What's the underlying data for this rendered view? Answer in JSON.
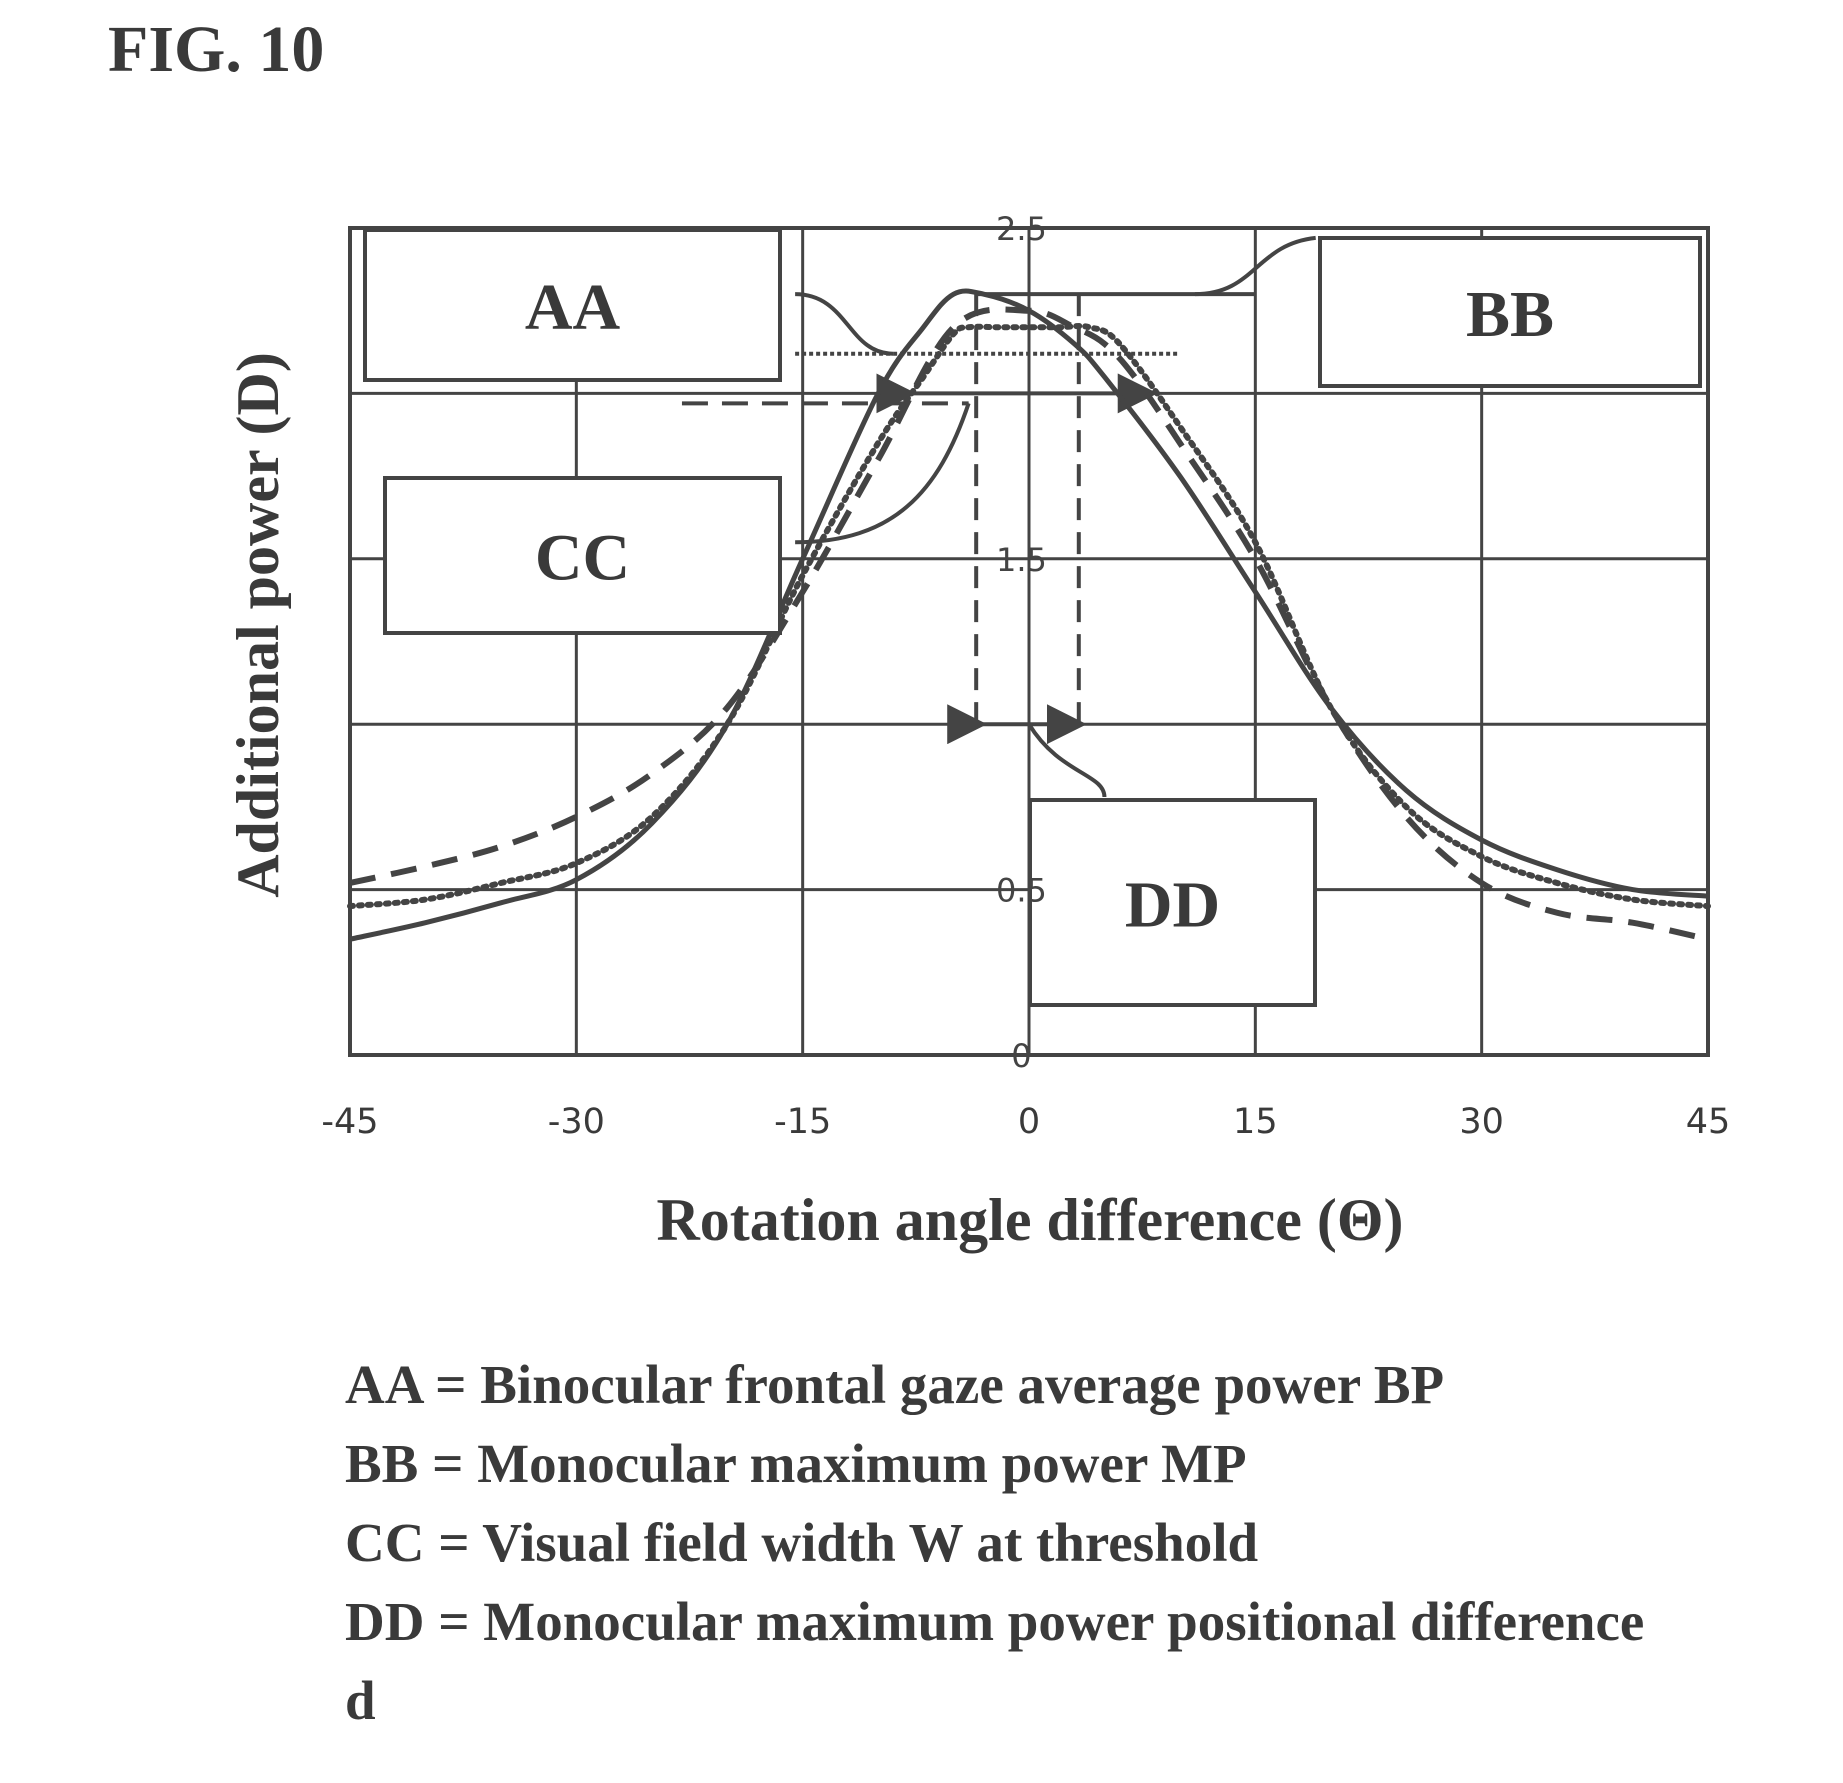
{
  "figure": {
    "title": "FIG. 10"
  },
  "chart_data": {
    "type": "line",
    "xlabel": "Rotation angle difference (Θ)",
    "ylabel": "Additional power (D)",
    "xlim": [
      -45,
      45
    ],
    "ylim": [
      0,
      2.5
    ],
    "x_ticks": [
      "-45",
      "-30",
      "-15",
      "0",
      "15",
      "30",
      "45"
    ],
    "y_ticks": [
      "0",
      "0.5",
      "1.5",
      "2.5"
    ],
    "grid": true,
    "series": [
      {
        "style": "solid",
        "x": [
          -45,
          -40,
          -35,
          -30,
          -25,
          -20,
          -15,
          -10,
          -7,
          -5,
          -3,
          0,
          3,
          5,
          10,
          15,
          20,
          25,
          30,
          35,
          40,
          45
        ],
        "y": [
          0.35,
          0.4,
          0.46,
          0.53,
          0.7,
          1.0,
          1.5,
          2.0,
          2.2,
          2.3,
          2.3,
          2.25,
          2.15,
          2.05,
          1.75,
          1.4,
          1.05,
          0.8,
          0.65,
          0.56,
          0.5,
          0.48
        ]
      },
      {
        "style": "dotted",
        "x": [
          -45,
          -40,
          -35,
          -30,
          -25,
          -20,
          -15,
          -10,
          -7,
          -5,
          -4,
          -2,
          0,
          2,
          4,
          6,
          10,
          15,
          20,
          25,
          30,
          35,
          40,
          45
        ],
        "y": [
          0.45,
          0.47,
          0.52,
          0.58,
          0.72,
          1.0,
          1.45,
          1.85,
          2.05,
          2.18,
          2.2,
          2.2,
          2.2,
          2.2,
          2.2,
          2.15,
          1.9,
          1.55,
          1.05,
          0.75,
          0.6,
          0.52,
          0.47,
          0.45
        ]
      },
      {
        "style": "dashed",
        "x": [
          -45,
          -40,
          -35,
          -30,
          -25,
          -20,
          -15,
          -10,
          -5,
          0,
          3,
          5,
          7,
          10,
          15,
          20,
          25,
          30,
          35,
          40,
          45
        ],
        "y": [
          0.52,
          0.57,
          0.63,
          0.72,
          0.85,
          1.05,
          1.4,
          1.8,
          2.2,
          2.25,
          2.2,
          2.15,
          2.05,
          1.85,
          1.5,
          1.05,
          0.72,
          0.52,
          0.43,
          0.4,
          0.35
        ]
      }
    ],
    "annotations": [
      {
        "label": "AA",
        "note": "horizontal line at y = 2.1"
      },
      {
        "label": "BB",
        "note": "peak level 2.3"
      },
      {
        "label": "CC",
        "note": "double arrow at y = 2.0"
      },
      {
        "label": "DD",
        "note": "double arrow at y = 1.0 between x = -3 and x = 3.5"
      }
    ],
    "box_labels": [
      "AA",
      "BB",
      "CC",
      "DD"
    ]
  },
  "legend": [
    "AA = Binocular frontal gaze average power BP",
    "BB = Monocular maximum power MP",
    "CC = Visual field width W at threshold",
    "DD = Monocular maximum power positional difference d"
  ]
}
